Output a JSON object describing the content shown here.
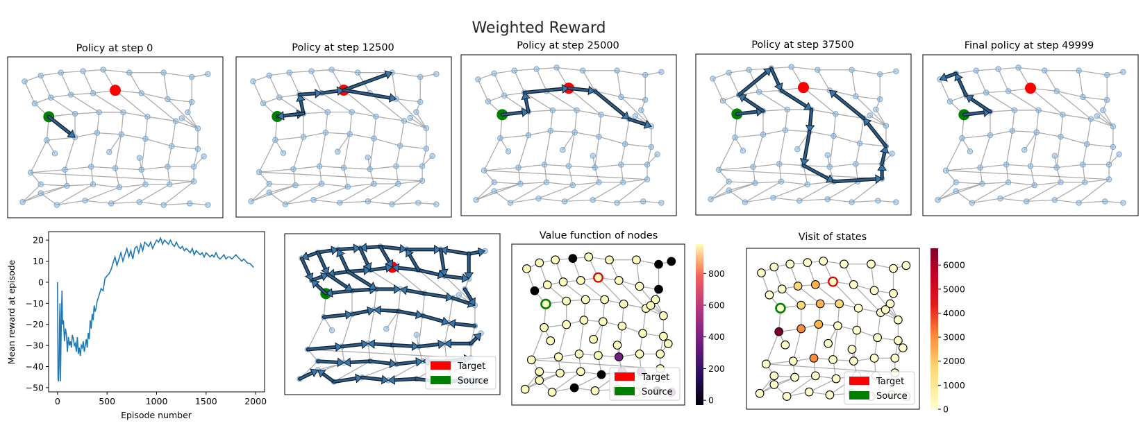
{
  "figure": {
    "suptitle": "Weighted Reward"
  },
  "policy_panels": [
    {
      "title": "Policy at step 0"
    },
    {
      "title": "Policy at step 12500"
    },
    {
      "title": "Policy at step 25000"
    },
    {
      "title": "Policy at step 37500"
    },
    {
      "title": "Final policy at step 49999"
    }
  ],
  "value_panel": {
    "title": "Value function of nodes"
  },
  "visit_panel": {
    "title": "Visit of states"
  },
  "legend": {
    "target": "Target",
    "source": "Source"
  },
  "colors": {
    "target": "#ff0000",
    "source": "#008000",
    "line": "#1f77b4",
    "node": "#1f77b4",
    "arrow": "#3b77a8"
  },
  "colorbars": {
    "value": {
      "colormap": "magma",
      "ticks": [
        "0",
        "200",
        "400",
        "600",
        "800"
      ],
      "min": -30,
      "max": 985,
      "tick_values": [
        0,
        200,
        400,
        600,
        800
      ]
    },
    "visit": {
      "colormap": "YlOrRd",
      "ticks": [
        "0",
        "1000",
        "2000",
        "3000",
        "4000",
        "5000",
        "6000"
      ],
      "min": 0,
      "max": 6700,
      "tick_values": [
        0,
        1000,
        2000,
        3000,
        4000,
        5000,
        6000
      ]
    }
  },
  "chart_data": [
    {
      "type": "line",
      "xlabel": "Episode number",
      "ylabel": "Mean reward at episode",
      "xlim": [
        -90,
        2090
      ],
      "ylim": [
        -52,
        24
      ],
      "xticks": [
        "0",
        "500",
        "1000",
        "1500",
        "2000"
      ],
      "yticks": [
        "20",
        "10",
        "0",
        "−10",
        "−20",
        "−30",
        "−40",
        "−50"
      ],
      "xtick_values": [
        0,
        500,
        1000,
        1500,
        2000
      ],
      "ytick_values": [
        20,
        10,
        0,
        -10,
        -20,
        -30,
        -40,
        -50
      ],
      "series": [
        {
          "x": [
            0,
            5,
            10,
            15,
            20,
            25,
            30,
            35,
            40,
            45,
            50,
            60,
            70,
            80,
            90,
            100,
            110,
            120,
            130,
            140,
            150,
            160,
            170,
            180,
            190,
            200,
            210,
            220,
            230,
            240,
            250,
            260,
            270,
            280,
            290,
            300,
            310,
            320,
            330,
            340,
            350,
            360,
            370,
            380,
            390,
            400,
            420,
            440,
            460,
            480,
            500,
            520,
            540,
            560,
            580,
            600,
            620,
            640,
            660,
            680,
            700,
            720,
            740,
            760,
            780,
            800,
            820,
            840,
            860,
            880,
            900,
            920,
            940,
            960,
            980,
            1000,
            1020,
            1040,
            1060,
            1080,
            1100,
            1120,
            1140,
            1160,
            1180,
            1200,
            1220,
            1240,
            1260,
            1280,
            1300,
            1320,
            1340,
            1360,
            1380,
            1400,
            1420,
            1440,
            1460,
            1480,
            1500,
            1520,
            1540,
            1560,
            1580,
            1600,
            1620,
            1640,
            1660,
            1680,
            1700,
            1720,
            1740,
            1760,
            1780,
            1800,
            1820,
            1840,
            1860,
            1880,
            1900,
            1920,
            1940,
            1960,
            1980
          ],
          "y": [
            0,
            -46,
            -47,
            -40,
            -20,
            -10,
            -47,
            -30,
            -15,
            -4,
            -20,
            -18,
            -28,
            -22,
            -25,
            -33,
            -26,
            -30,
            -28,
            -31,
            -25,
            -27,
            -30,
            -29,
            -33,
            -26,
            -34,
            -31,
            -35,
            -30,
            -31,
            -28,
            -33,
            -30,
            -27,
            -31,
            -24,
            -27,
            -18,
            -22,
            -15,
            -18,
            -11,
            -14,
            -12,
            -9,
            -6,
            -3,
            -4,
            2,
            3,
            4,
            6,
            9,
            12,
            8,
            11,
            14,
            10,
            13,
            16,
            12,
            15,
            11,
            16,
            17,
            14,
            18,
            15,
            19,
            18,
            17,
            19,
            16,
            18,
            20,
            19,
            21,
            18,
            20,
            19,
            18,
            20,
            18,
            17,
            19,
            17,
            16,
            17,
            15,
            16,
            15,
            14,
            16,
            13,
            15,
            14,
            13,
            14,
            12,
            14,
            13,
            12,
            13,
            12,
            14,
            12,
            11,
            12,
            13,
            11,
            12,
            12,
            11,
            12,
            13,
            12,
            11,
            10,
            11,
            10,
            9,
            9,
            8,
            7
          ]
        }
      ]
    }
  ]
}
